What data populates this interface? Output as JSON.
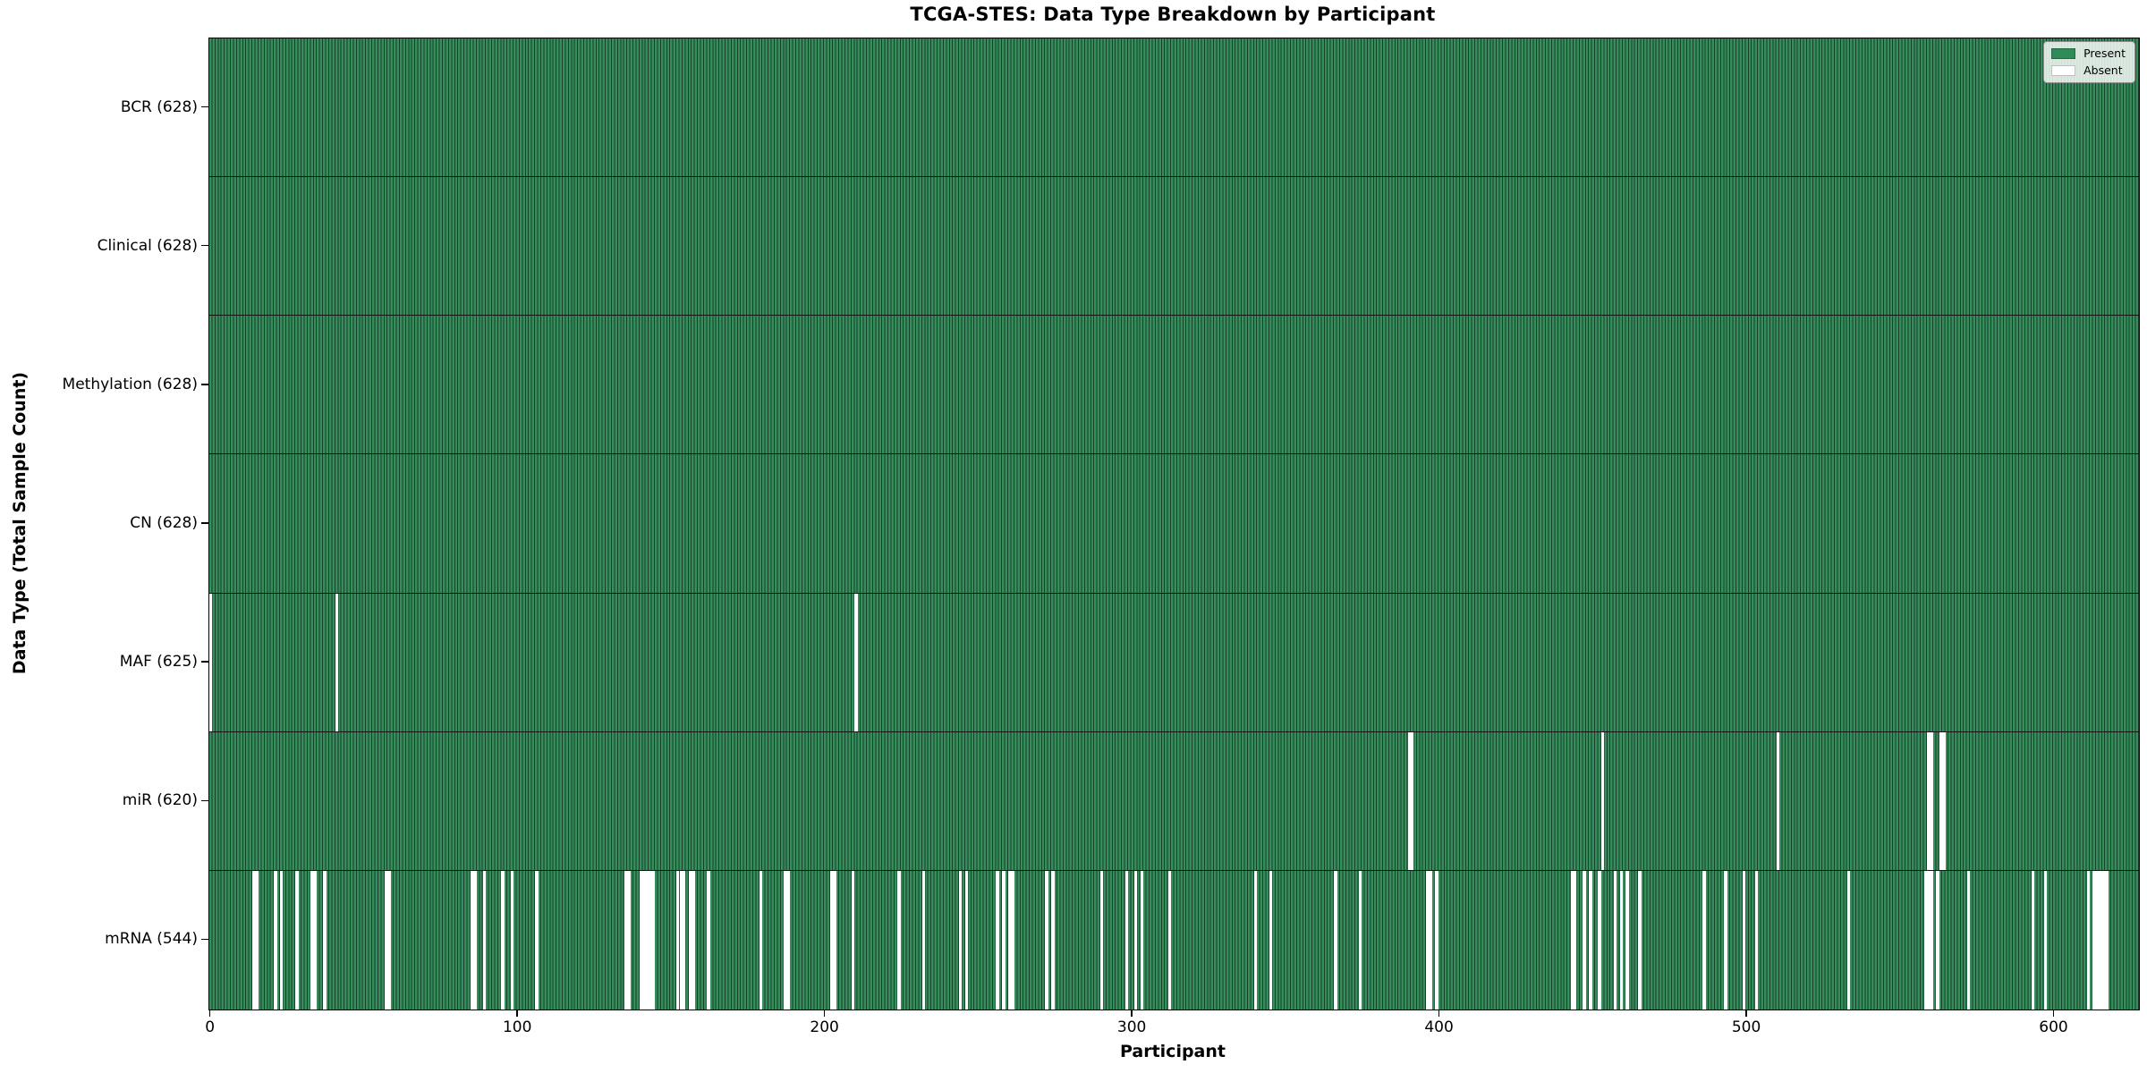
{
  "chart_data": {
    "type": "heatmap",
    "title": "TCGA-STES: Data Type Breakdown by Participant",
    "xlabel": "Participant",
    "ylabel": "Data Type (Total Sample Count)",
    "n_participants": 628,
    "x_ticks": [
      0,
      100,
      200,
      300,
      400,
      500,
      600
    ],
    "grid": false,
    "legend": {
      "position": "upper right",
      "entries": [
        {
          "label": "Present",
          "color": "#2e8b57"
        },
        {
          "label": "Absent",
          "color": "#ffffff"
        }
      ]
    },
    "colors": {
      "present": "#378d5c",
      "absent": "#ffffff",
      "bar_edge": "#15402a",
      "row_divider": "#141414",
      "axis": "#000000"
    },
    "rows": [
      {
        "name": "BCR",
        "label": "BCR (628)",
        "total": 628,
        "absent": []
      },
      {
        "name": "Clinical",
        "label": "Clinical (628)",
        "total": 628,
        "absent": []
      },
      {
        "name": "Methylation",
        "label": "Methylation (628)",
        "total": 628,
        "absent": []
      },
      {
        "name": "CN",
        "label": "CN (628)",
        "total": 628,
        "absent": []
      },
      {
        "name": "MAF",
        "label": "MAF (625)",
        "total": 625,
        "absent": [
          0,
          41,
          210
        ]
      },
      {
        "name": "miR",
        "label": "miR (620)",
        "total": 620,
        "absent": [
          390,
          391,
          453,
          510,
          559,
          560,
          563,
          564
        ]
      },
      {
        "name": "mRNA",
        "label": "mRNA (544)",
        "total": 544,
        "absent": [
          14,
          15,
          21,
          23,
          28,
          33,
          34,
          37,
          57,
          58,
          85,
          86,
          89,
          95,
          98,
          106,
          135,
          136,
          140,
          141,
          142,
          143,
          144,
          152,
          153,
          154,
          156,
          157,
          162,
          179,
          187,
          188,
          202,
          203,
          209,
          224,
          232,
          244,
          246,
          256,
          258,
          260,
          261,
          272,
          274,
          290,
          298,
          301,
          303,
          312,
          340,
          345,
          366,
          374,
          396,
          397,
          399,
          443,
          444,
          447,
          449,
          452,
          457,
          459,
          461,
          465,
          486,
          493,
          499,
          503,
          533,
          558,
          559,
          560,
          562,
          572,
          593,
          597,
          611,
          613,
          614,
          615,
          616,
          617
        ]
      }
    ]
  }
}
